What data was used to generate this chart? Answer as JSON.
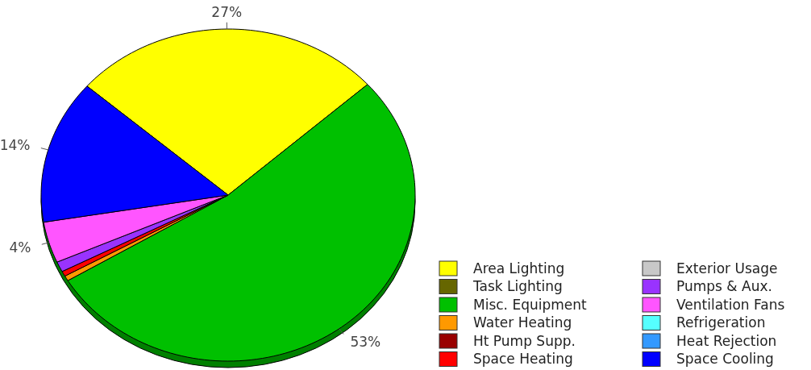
{
  "chart_data": {
    "type": "pie",
    "categories": [
      "Area Lighting",
      "Task Lighting",
      "Misc. Equipment",
      "Water Heating",
      "Ht Pump Supp.",
      "Space Heating",
      "Exterior Usage",
      "Pumps & Aux.",
      "Ventilation Fans",
      "Refrigeration",
      "Heat Rejection",
      "Space Cooling"
    ],
    "values": [
      27,
      0,
      53,
      0.5,
      0,
      0.5,
      0,
      1,
      4,
      0,
      0,
      14
    ],
    "colors": [
      "#ffff00",
      "#666600",
      "#00c000",
      "#ff9900",
      "#990000",
      "#ff0000",
      "#c8c8c8",
      "#9933ff",
      "#ff55ff",
      "#55ffff",
      "#3399ff",
      "#0000ff"
    ],
    "value_labels": [
      "27%",
      null,
      "53%",
      null,
      null,
      null,
      null,
      null,
      "4%",
      null,
      null,
      "14%"
    ],
    "legend": "bottom right"
  }
}
